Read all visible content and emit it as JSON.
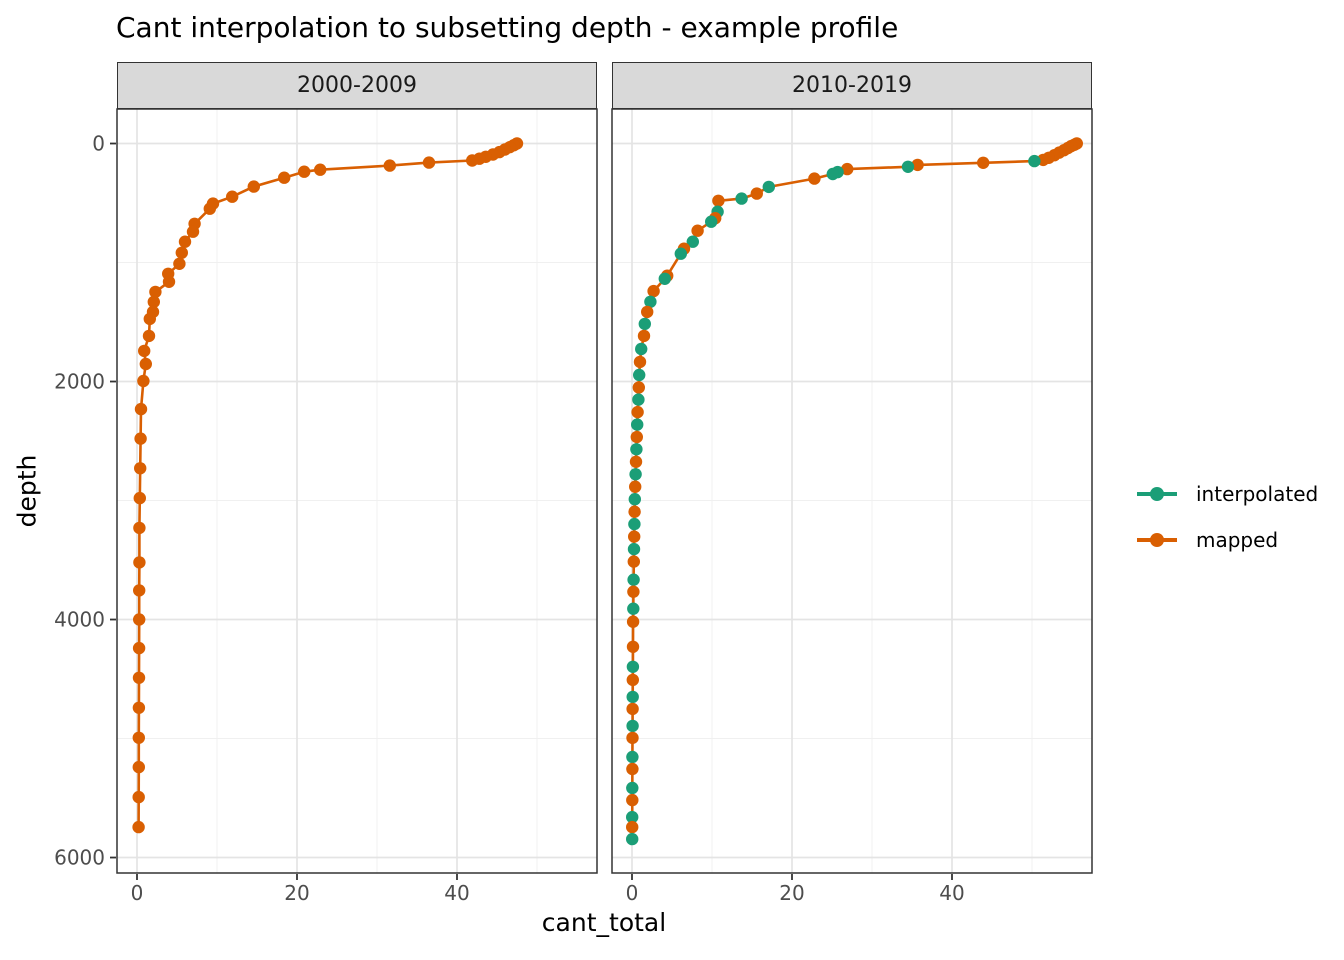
{
  "legend": {
    "items": [
      {
        "label": "interpolated",
        "color": "#1B9E77"
      },
      {
        "label": "mapped",
        "color": "#D95F02"
      }
    ]
  },
  "chart_data": {
    "type": "line",
    "title": "Cant interpolation to subsetting depth - example profile",
    "xlabel": "cant_total",
    "ylabel": "depth",
    "x_ticks": [
      0,
      20,
      40
    ],
    "x_minor_ticks": [
      10,
      30,
      50
    ],
    "y_ticks": [
      0,
      2000,
      4000,
      6000
    ],
    "y_minor_ticks": [
      1000,
      3000,
      5000
    ],
    "x_range": [
      -2.5,
      57.5
    ],
    "y_range": [
      -290,
      6130
    ],
    "y_axis_reversed": true,
    "legend_position": "right",
    "point_type_key": {
      "m": "mapped",
      "i": "interpolated"
    },
    "series_colors": {
      "interpolated": "#1B9E77",
      "mapped": "#D95F02"
    },
    "line_color": "#D95F02",
    "facets": [
      {
        "label": "2000-2009",
        "points": [
          [
            47.5,
            0,
            "m"
          ],
          [
            47.1,
            14,
            "m"
          ],
          [
            46.6,
            30,
            "m"
          ],
          [
            46.0,
            50,
            "m"
          ],
          [
            45.3,
            72,
            "m"
          ],
          [
            44.5,
            92,
            "m"
          ],
          [
            43.6,
            112,
            "m"
          ],
          [
            42.8,
            128,
            "m"
          ],
          [
            41.9,
            143,
            "m"
          ],
          [
            36.5,
            160,
            "m"
          ],
          [
            31.6,
            186,
            "m"
          ],
          [
            22.9,
            220,
            "m"
          ],
          [
            20.9,
            237,
            "m"
          ],
          [
            18.4,
            287,
            "m"
          ],
          [
            14.6,
            362,
            "m"
          ],
          [
            11.9,
            447,
            "m"
          ],
          [
            9.5,
            505,
            "m"
          ],
          [
            9.1,
            548,
            "m"
          ],
          [
            7.2,
            675,
            "m"
          ],
          [
            7.0,
            741,
            "m"
          ],
          [
            6.0,
            825,
            "m"
          ],
          [
            5.6,
            918,
            "m"
          ],
          [
            5.3,
            1011,
            "m"
          ],
          [
            3.9,
            1095,
            "m"
          ],
          [
            4.0,
            1162,
            "m"
          ],
          [
            2.3,
            1247,
            "m"
          ],
          [
            2.1,
            1331,
            "m"
          ],
          [
            2.0,
            1415,
            "m"
          ],
          [
            1.6,
            1474,
            "m"
          ],
          [
            1.5,
            1617,
            "m"
          ],
          [
            0.9,
            1743,
            "m"
          ],
          [
            1.1,
            1853,
            "m"
          ],
          [
            0.8,
            1996,
            "m"
          ],
          [
            0.5,
            2232,
            "m"
          ],
          [
            0.45,
            2480,
            "m"
          ],
          [
            0.4,
            2729,
            "m"
          ],
          [
            0.35,
            2980,
            "m"
          ],
          [
            0.3,
            3230,
            "m"
          ],
          [
            0.3,
            3520,
            "m"
          ],
          [
            0.28,
            3755,
            "m"
          ],
          [
            0.27,
            4000,
            "m"
          ],
          [
            0.26,
            4240,
            "m"
          ],
          [
            0.25,
            4490,
            "m"
          ],
          [
            0.24,
            4742,
            "m"
          ],
          [
            0.23,
            4994,
            "m"
          ],
          [
            0.22,
            5240,
            "m"
          ],
          [
            0.21,
            5492,
            "m"
          ],
          [
            0.2,
            5744,
            "m"
          ]
        ]
      },
      {
        "label": "2010-2019",
        "points": [
          [
            55.6,
            0,
            "m"
          ],
          [
            55.3,
            10,
            "m"
          ],
          [
            54.9,
            22,
            "m"
          ],
          [
            54.5,
            38,
            "m"
          ],
          [
            54.0,
            56,
            "m"
          ],
          [
            53.4,
            76,
            "m"
          ],
          [
            52.8,
            98,
            "m"
          ],
          [
            52.1,
            120,
            "m"
          ],
          [
            51.4,
            138,
            "m"
          ],
          [
            50.3,
            148,
            "i"
          ],
          [
            43.9,
            162,
            "m"
          ],
          [
            35.7,
            180,
            "m"
          ],
          [
            34.5,
            196,
            "i"
          ],
          [
            26.9,
            215,
            "m"
          ],
          [
            25.7,
            240,
            "i"
          ],
          [
            25.1,
            256,
            "i"
          ],
          [
            22.8,
            295,
            "m"
          ],
          [
            17.1,
            365,
            "i"
          ],
          [
            15.6,
            421,
            "m"
          ],
          [
            13.7,
            463,
            "i"
          ],
          [
            10.8,
            481,
            "m"
          ],
          [
            10.7,
            573,
            "i"
          ],
          [
            10.4,
            628,
            "m"
          ],
          [
            9.9,
            657,
            "i"
          ],
          [
            8.2,
            733,
            "m"
          ],
          [
            7.6,
            825,
            "i"
          ],
          [
            6.5,
            884,
            "m"
          ],
          [
            6.1,
            926,
            "i"
          ],
          [
            4.4,
            1111,
            "m"
          ],
          [
            4.1,
            1137,
            "i"
          ],
          [
            2.7,
            1240,
            "m"
          ],
          [
            2.3,
            1330,
            "i"
          ],
          [
            1.9,
            1415,
            "m"
          ],
          [
            1.6,
            1516,
            "i"
          ],
          [
            1.5,
            1617,
            "m"
          ],
          [
            1.15,
            1727,
            "i"
          ],
          [
            1.0,
            1835,
            "m"
          ],
          [
            0.9,
            1945,
            "i"
          ],
          [
            0.85,
            2050,
            "m"
          ],
          [
            0.8,
            2152,
            "i"
          ],
          [
            0.7,
            2257,
            "m"
          ],
          [
            0.65,
            2362,
            "i"
          ],
          [
            0.6,
            2466,
            "m"
          ],
          [
            0.55,
            2570,
            "i"
          ],
          [
            0.5,
            2675,
            "m"
          ],
          [
            0.45,
            2780,
            "i"
          ],
          [
            0.4,
            2884,
            "m"
          ],
          [
            0.35,
            2989,
            "i"
          ],
          [
            0.32,
            3094,
            "m"
          ],
          [
            0.3,
            3198,
            "i"
          ],
          [
            0.28,
            3303,
            "m"
          ],
          [
            0.25,
            3408,
            "i"
          ],
          [
            0.22,
            3513,
            "m"
          ],
          [
            0.2,
            3665,
            "i"
          ],
          [
            0.18,
            3766,
            "m"
          ],
          [
            0.16,
            3909,
            "i"
          ],
          [
            0.14,
            4018,
            "m"
          ],
          [
            0.12,
            4229,
            "m"
          ],
          [
            0.11,
            4397,
            "i"
          ],
          [
            0.1,
            4507,
            "m"
          ],
          [
            0.09,
            4650,
            "i"
          ],
          [
            0.08,
            4751,
            "m"
          ],
          [
            0.07,
            4894,
            "i"
          ],
          [
            0.06,
            4995,
            "m"
          ],
          [
            0.05,
            5155,
            "i"
          ],
          [
            0.05,
            5256,
            "m"
          ],
          [
            0.04,
            5416,
            "i"
          ],
          [
            0.04,
            5517,
            "m"
          ],
          [
            0.03,
            5660,
            "i"
          ],
          [
            0.03,
            5744,
            "m"
          ],
          [
            0.02,
            5845,
            "i"
          ]
        ]
      }
    ]
  },
  "style_colors": {
    "strip_fill": "#D9D9D9",
    "panel_border": "#333333",
    "grid_major": "#E4E4E4",
    "grid_minor": "#F0F0F0",
    "tick_mark": "#333333",
    "tick_label": "#4D4D4D"
  }
}
